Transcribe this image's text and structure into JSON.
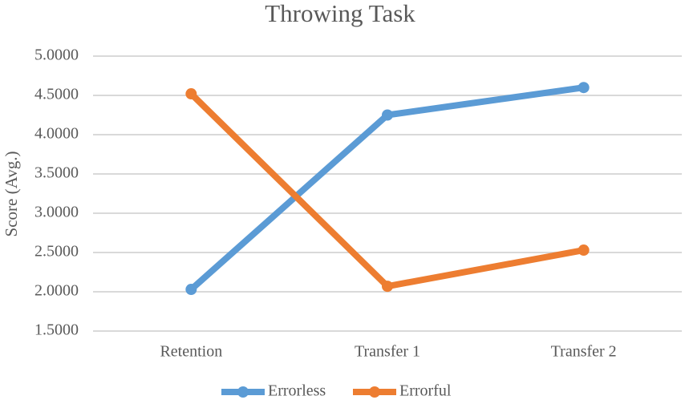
{
  "chart_data": {
    "type": "line",
    "title": "Throwing Task",
    "y_label": "Score (Avg.)",
    "categories": [
      "Retention",
      "Transfer 1",
      "Transfer 2"
    ],
    "series": [
      {
        "name": "Errorless",
        "color": "#5b9bd5",
        "values": [
          2.03,
          4.25,
          4.6
        ]
      },
      {
        "name": "Errorful",
        "color": "#ed7d31",
        "values": [
          4.52,
          2.07,
          2.53
        ]
      }
    ],
    "ylim": [
      1.5,
      5.0
    ],
    "yticks": [
      {
        "value": 1.5,
        "label": "1.5000"
      },
      {
        "value": 2.0,
        "label": "2.0000"
      },
      {
        "value": 2.5,
        "label": "2.5000"
      },
      {
        "value": 3.0,
        "label": "3.0000"
      },
      {
        "value": 3.5,
        "label": "3.5000"
      },
      {
        "value": 4.0,
        "label": "4.0000"
      },
      {
        "value": 4.5,
        "label": "4.5000"
      },
      {
        "value": 5.0,
        "label": "5.0000"
      }
    ],
    "grid": true
  }
}
